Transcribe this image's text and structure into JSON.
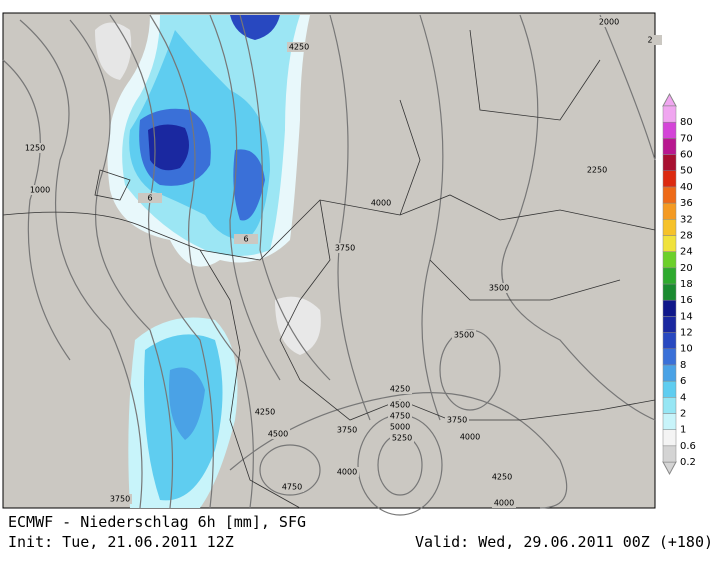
{
  "map": {
    "legend": {
      "levels": [
        0.2,
        0.6,
        1,
        2,
        4,
        6,
        8,
        10,
        12,
        14,
        16,
        18,
        20,
        24,
        28,
        32,
        36,
        40,
        50,
        60,
        70,
        80
      ],
      "colors": [
        "#d4d4d4",
        "#f4f4f4",
        "#c8f4fa",
        "#96e6f4",
        "#5fcdf0",
        "#4aa2e6",
        "#3a70d8",
        "#2848c0",
        "#1a28a0",
        "#10188a",
        "#1a8a30",
        "#2eaa2e",
        "#6cd02a",
        "#f0e23c",
        "#f6c22a",
        "#f49a22",
        "#ee6a18",
        "#dc2a10",
        "#a81030",
        "#b81890",
        "#d444d8",
        "#f0a6f0"
      ]
    },
    "contour_labels": [
      4250,
      2000,
      2,
      1250,
      1000,
      2250,
      4000,
      3750,
      3500,
      3500,
      4250,
      4500,
      4750,
      5000,
      5250,
      3750,
      4000,
      3750,
      4250,
      4500,
      4000,
      4250,
      4750,
      4000,
      3750,
      6,
      6
    ],
    "footer": {
      "title": "ECMWF - Niederschlag 6h [mm], SFG",
      "init": "Init: Tue, 21.06.2011 12Z",
      "valid": "Valid: Wed, 29.06.2011 00Z (+180)"
    }
  }
}
